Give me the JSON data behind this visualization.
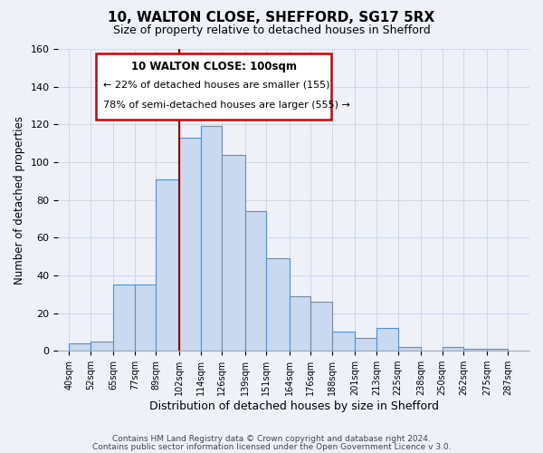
{
  "title1": "10, WALTON CLOSE, SHEFFORD, SG17 5RX",
  "title2": "Size of property relative to detached houses in Shefford",
  "xlabel": "Distribution of detached houses by size in Shefford",
  "ylabel": "Number of detached properties",
  "footer1": "Contains HM Land Registry data © Crown copyright and database right 2024.",
  "footer2": "Contains public sector information licensed under the Open Government Licence v 3.0.",
  "annotation_title": "10 WALTON CLOSE: 100sqm",
  "annotation_line2": "← 22% of detached houses are smaller (155)",
  "annotation_line3": "78% of semi-detached houses are larger (555) →",
  "bar_left_edges": [
    40,
    52,
    65,
    77,
    89,
    102,
    114,
    126,
    139,
    151,
    164,
    176,
    188,
    201,
    213,
    225,
    238,
    250,
    262,
    275
  ],
  "bar_heights": [
    4,
    5,
    35,
    35,
    91,
    113,
    119,
    104,
    74,
    49,
    29,
    26,
    10,
    7,
    12,
    2,
    0,
    2,
    1,
    1
  ],
  "bar_color": "#c9d9ef",
  "bar_edge_color": "#5b8fc9",
  "vline_x": 102,
  "vline_color": "#aa0000",
  "xlim": [
    34,
    299
  ],
  "ylim": [
    0,
    160
  ],
  "yticks": [
    0,
    20,
    40,
    60,
    80,
    100,
    120,
    140,
    160
  ],
  "xtick_labels": [
    "40sqm",
    "52sqm",
    "65sqm",
    "77sqm",
    "89sqm",
    "102sqm",
    "114sqm",
    "126sqm",
    "139sqm",
    "151sqm",
    "164sqm",
    "176sqm",
    "188sqm",
    "201sqm",
    "213sqm",
    "225sqm",
    "238sqm",
    "250sqm",
    "262sqm",
    "275sqm",
    "287sqm"
  ],
  "xtick_positions": [
    40,
    52,
    65,
    77,
    89,
    102,
    114,
    126,
    139,
    151,
    164,
    176,
    188,
    201,
    213,
    225,
    238,
    250,
    262,
    275,
    287
  ],
  "grid_color": "#d0d8e8",
  "bg_color": "#eef2f8",
  "ann_box_facecolor": "white",
  "ann_box_edgecolor": "#cc0000"
}
